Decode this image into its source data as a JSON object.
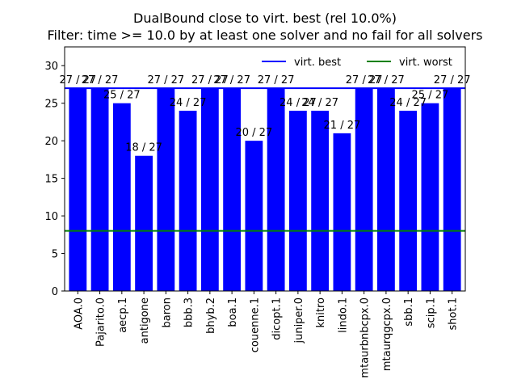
{
  "chart_data": {
    "type": "bar",
    "title_line1": "DualBound close to virt. best (rel 10.0%)",
    "title_line2": "Filter: time >= 10.0 by at least one solver and no fail for all solvers",
    "categories": [
      "AOA.0",
      "Pajarito.0",
      "aecp.1",
      "antigone",
      "baron",
      "bbb.3",
      "bhyb.2",
      "boa.1",
      "couenne.1",
      "dicopt.1",
      "juniper.0",
      "knitro",
      "lindo.1",
      "mtaurbnbcpx.0",
      "mtaurqgcpx.0",
      "sbb.1",
      "scip.1",
      "shot.1"
    ],
    "values": [
      27,
      27,
      25,
      18,
      27,
      24,
      27,
      27,
      20,
      27,
      24,
      24,
      21,
      27,
      27,
      24,
      25,
      27
    ],
    "data_labels": [
      "27 / 27",
      "27 / 27",
      "25 / 27",
      "18 / 27",
      "27 / 27",
      "24 / 27",
      "27 / 27",
      "27 / 27",
      "20 / 27",
      "27 / 27",
      "24 / 27",
      "24 / 27",
      "21 / 27",
      "27 / 27",
      "27 / 27",
      "24 / 27",
      "25 / 27",
      "27 / 27"
    ],
    "ylim": [
      0,
      32.5
    ],
    "yticks": [
      "0",
      "5",
      "10",
      "15",
      "20",
      "25",
      "30"
    ],
    "reference_lines": [
      {
        "name": "virt. best",
        "value": 27,
        "color": "#0000ff"
      },
      {
        "name": "virt. worst",
        "value": 8,
        "color": "#008000"
      }
    ],
    "bar_color": "#0000ff",
    "legend_position": "top-right",
    "grid": false
  }
}
